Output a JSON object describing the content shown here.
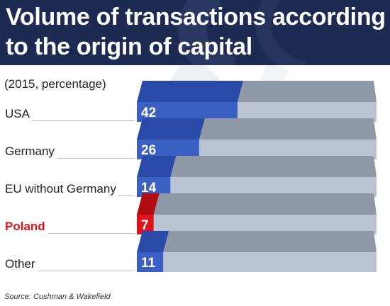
{
  "title_lines": [
    "Volume of transactions according",
    "to the origin of capital"
  ],
  "source": "Source: Cushman & Wakefield",
  "colors": {
    "header_bg": "#1d2a52",
    "bar_value": "#3a60c4",
    "bar_value_top": "#2a4aa8",
    "bar_highlight": "#e0121a",
    "bar_highlight_top": "#b00c12",
    "bar_rest": "#b9c3d1",
    "bar_rest_top": "#8e98a6",
    "bar_rest_side": "#9aa4b2"
  },
  "chart_data": {
    "type": "bar",
    "orientation": "horizontal",
    "subtitle": "(2015, percentage)",
    "categories": [
      "USA",
      "Germany",
      "EU without Germany",
      "Poland",
      "Other"
    ],
    "values": [
      42,
      26,
      14,
      7,
      11
    ],
    "data_labels": [
      "42",
      "26",
      "14",
      "7",
      "11"
    ],
    "highlight": "Poland",
    "xlim": [
      0,
      100
    ],
    "title": "",
    "xlabel": "",
    "ylabel": "",
    "grid": false,
    "legend": "none"
  }
}
